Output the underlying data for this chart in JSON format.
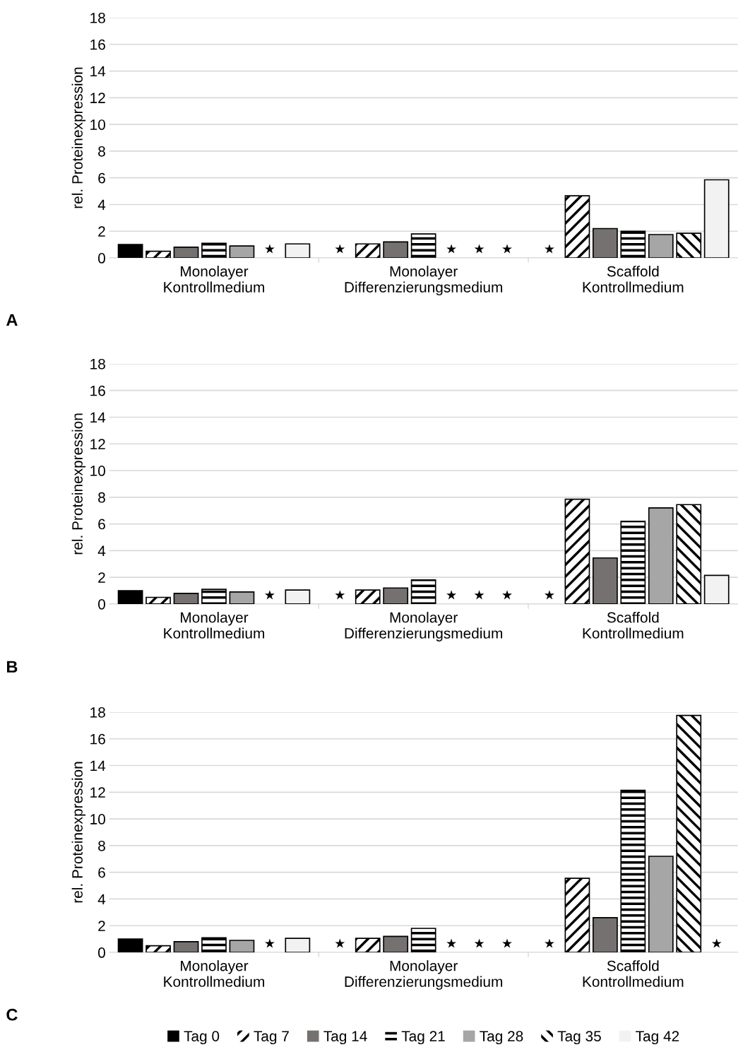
{
  "chart_data": [
    {
      "type": "bar",
      "categories": [
        "Monolayer\nKontrollmedium",
        "Monolayer\nDifferenzierungsmedium",
        "Scaffold\nKontrollmedium"
      ],
      "ylabel": "rel. Proteinexpression",
      "ylim": [
        0,
        18
      ],
      "yticks": [
        0,
        2,
        4,
        6,
        8,
        10,
        12,
        14,
        16,
        18
      ],
      "grid": "y",
      "legend": "bottom",
      "annotations": [
        "A"
      ],
      "series": [
        {
          "name": "Tag 0",
          "color": "#000000",
          "values": [
            1.0,
            null,
            null
          ],
          "value_labels": [
            null,
            "★",
            "★"
          ]
        },
        {
          "name": "Tag 7",
          "color": "#ffffff",
          "values": [
            0.5,
            1.05,
            4.65
          ],
          "value_labels": [
            null,
            null,
            null
          ]
        },
        {
          "name": "Tag 14",
          "color": "#767171",
          "values": [
            0.8,
            1.2,
            2.2
          ],
          "value_labels": [
            null,
            null,
            null
          ]
        },
        {
          "name": "Tag 21",
          "color": "#ffffff",
          "values": [
            1.1,
            1.8,
            2.0
          ],
          "value_labels": [
            null,
            null,
            null
          ]
        },
        {
          "name": "Tag 28",
          "color": "#a6a6a6",
          "values": [
            0.9,
            null,
            1.75
          ],
          "value_labels": [
            null,
            "★",
            null
          ]
        },
        {
          "name": "Tag 35",
          "color": "#ffffff",
          "values": [
            null,
            null,
            1.85
          ],
          "value_labels": [
            "★",
            "★",
            null
          ]
        },
        {
          "name": "Tag 42",
          "color": "#f2f2f2",
          "values": [
            1.05,
            null,
            5.85
          ],
          "value_labels": [
            null,
            "★",
            null
          ]
        }
      ]
    },
    {
      "type": "bar",
      "categories": [
        "Monolayer\nKontrollmedium",
        "Monolayer\nDifferenzierungsmedium",
        "Scaffold\nKontrollmedium"
      ],
      "ylabel": "rel. Proteinexpression",
      "ylim": [
        0,
        18
      ],
      "yticks": [
        0,
        2,
        4,
        6,
        8,
        10,
        12,
        14,
        16,
        18
      ],
      "grid": "y",
      "legend": "bottom",
      "annotations": [
        "B"
      ],
      "series": [
        {
          "name": "Tag 0",
          "color": "#000000",
          "values": [
            1.0,
            null,
            null
          ],
          "value_labels": [
            null,
            "★",
            "★"
          ]
        },
        {
          "name": "Tag 7",
          "color": "#ffffff",
          "values": [
            0.5,
            1.05,
            7.85
          ],
          "value_labels": [
            null,
            null,
            null
          ]
        },
        {
          "name": "Tag 14",
          "color": "#767171",
          "values": [
            0.8,
            1.2,
            3.45
          ],
          "value_labels": [
            null,
            null,
            null
          ]
        },
        {
          "name": "Tag 21",
          "color": "#ffffff",
          "values": [
            1.1,
            1.8,
            6.2
          ],
          "value_labels": [
            null,
            null,
            null
          ]
        },
        {
          "name": "Tag 28",
          "color": "#a6a6a6",
          "values": [
            0.9,
            null,
            7.2
          ],
          "value_labels": [
            null,
            "★",
            null
          ]
        },
        {
          "name": "Tag 35",
          "color": "#ffffff",
          "values": [
            null,
            null,
            7.45
          ],
          "value_labels": [
            "★",
            "★",
            null
          ]
        },
        {
          "name": "Tag 42",
          "color": "#f2f2f2",
          "values": [
            1.05,
            null,
            2.15
          ],
          "value_labels": [
            null,
            "★",
            null
          ]
        }
      ]
    },
    {
      "type": "bar",
      "categories": [
        "Monolayer\nKontrollmedium",
        "Monolayer\nDifferenzierungsmedium",
        "Scaffold\nKontrollmedium"
      ],
      "ylabel": "rel. Proteinexpression",
      "ylim": [
        0,
        18
      ],
      "yticks": [
        0,
        2,
        4,
        6,
        8,
        10,
        12,
        14,
        16,
        18
      ],
      "grid": "y",
      "legend": "bottom",
      "annotations": [
        "C"
      ],
      "series": [
        {
          "name": "Tag 0",
          "color": "#000000",
          "values": [
            1.0,
            null,
            null
          ],
          "value_labels": [
            null,
            "★",
            "★"
          ]
        },
        {
          "name": "Tag 7",
          "color": "#ffffff",
          "values": [
            0.5,
            1.05,
            5.55
          ],
          "value_labels": [
            null,
            null,
            null
          ]
        },
        {
          "name": "Tag 14",
          "color": "#767171",
          "values": [
            0.8,
            1.2,
            2.6
          ],
          "value_labels": [
            null,
            null,
            null
          ]
        },
        {
          "name": "Tag 21",
          "color": "#ffffff",
          "values": [
            1.1,
            1.8,
            12.15
          ],
          "value_labels": [
            null,
            null,
            null
          ]
        },
        {
          "name": "Tag 28",
          "color": "#a6a6a6",
          "values": [
            0.9,
            null,
            7.2
          ],
          "value_labels": [
            null,
            "★",
            null
          ]
        },
        {
          "name": "Tag 35",
          "color": "#ffffff",
          "values": [
            null,
            null,
            17.75
          ],
          "value_labels": [
            "★",
            "★",
            null
          ]
        },
        {
          "name": "Tag 42",
          "color": "#f2f2f2",
          "values": [
            1.05,
            null,
            null
          ],
          "value_labels": [
            null,
            "★",
            "★"
          ]
        }
      ]
    }
  ]
}
